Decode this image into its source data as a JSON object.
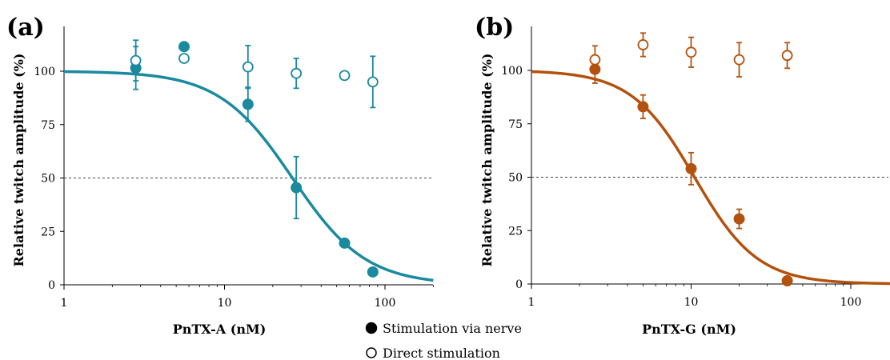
{
  "legend": {
    "nerve": "Stimulation via nerve",
    "direct": "Direct stimulation"
  },
  "chart_data": [
    {
      "panel_label": "(a)",
      "type": "scatter",
      "xscale": "log",
      "xlim": [
        1,
        200
      ],
      "ylim": [
        0,
        120
      ],
      "xlabel": "PnTX-A (nM)",
      "ylabel": "Relative twitch amplitude (%)",
      "xtick_labels": [
        "1",
        "10",
        "100"
      ],
      "ytick_labels": [
        "0",
        "25",
        "50",
        "75",
        "100"
      ],
      "color": "#1a8a9e",
      "reference_line": 50,
      "grid": false,
      "legend_position": "bottom-center",
      "fit_curve": {
        "ic50": 26.5,
        "hill": 1.9,
        "top": 100,
        "bottom": 0
      },
      "series": [
        {
          "name": "Stimulation via nerve",
          "marker": "filled-circle",
          "x": [
            2.8,
            5.6,
            14,
            28,
            56,
            84
          ],
          "y": [
            101.5,
            111.5,
            84.5,
            45.5,
            19.5,
            6
          ],
          "err": [
            10,
            0,
            8,
            14.5,
            0,
            0
          ]
        },
        {
          "name": "Direct stimulation",
          "marker": "open-circle",
          "x": [
            2.8,
            5.6,
            14,
            28,
            56,
            84
          ],
          "y": [
            105,
            106,
            102,
            99,
            98,
            95
          ],
          "err": [
            9.5,
            0,
            10,
            7,
            0,
            12
          ]
        }
      ]
    },
    {
      "panel_label": "(b)",
      "type": "scatter",
      "xscale": "log",
      "xlim": [
        1,
        200
      ],
      "ylim": [
        0,
        120
      ],
      "xlabel": "PnTX-G (nM)",
      "ylabel": "Relative twitch amplitude (%)",
      "xtick_labels": [
        "1",
        "10",
        "100"
      ],
      "ytick_labels": [
        "0",
        "25",
        "50",
        "75",
        "100"
      ],
      "color": "#b3520e",
      "reference_line": 50,
      "grid": false,
      "fit_curve": {
        "ic50": 10.5,
        "hill": 2.2,
        "top": 100,
        "bottom": 0
      },
      "series": [
        {
          "name": "Stimulation via nerve",
          "marker": "filled-circle",
          "x": [
            2.5,
            5,
            10,
            20,
            40
          ],
          "y": [
            100.5,
            83,
            54,
            30.5,
            1.5
          ],
          "err": [
            6.5,
            5.5,
            7.5,
            4.5,
            0
          ]
        },
        {
          "name": "Direct stimulation",
          "marker": "open-circle",
          "x": [
            2.5,
            5,
            10,
            20,
            40
          ],
          "y": [
            105,
            112,
            108.5,
            105,
            107
          ],
          "err": [
            6.5,
            5.5,
            7,
            8,
            6
          ]
        }
      ]
    }
  ]
}
